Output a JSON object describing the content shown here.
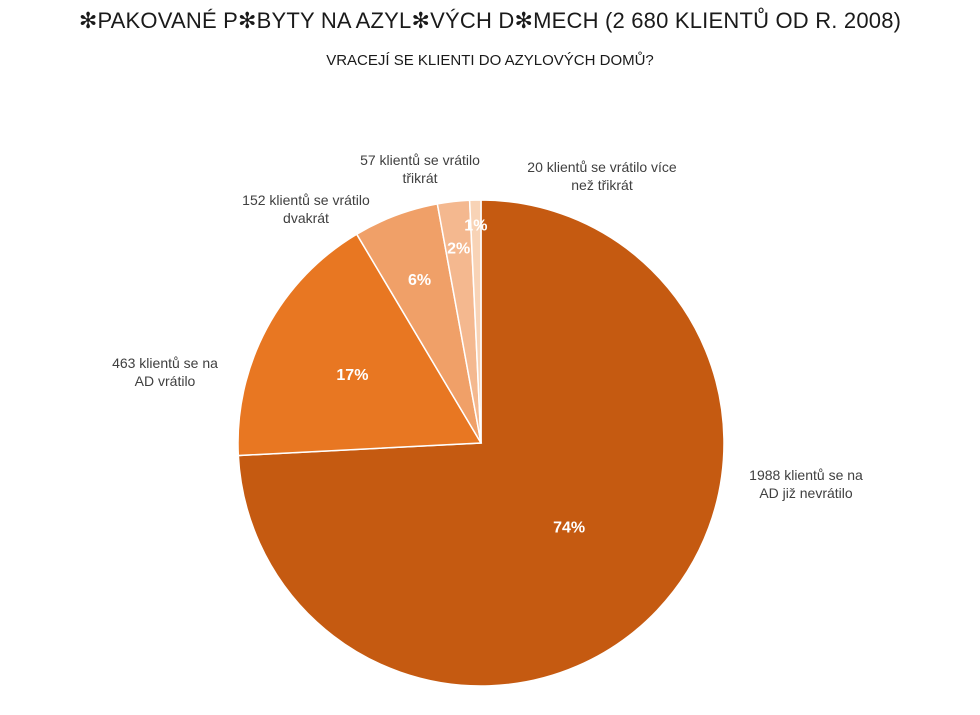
{
  "title": "✻PAKOVANÉ P✻BYTY NA AZYL✻VÝCH D✻MECH (2 680 KLIENTŮ OD R. 2008)",
  "subtitle": "VRACEJÍ SE KLIENTI DO AZYLOVÝCH DOMŮ?",
  "chart_data": {
    "type": "pie",
    "title": "✻PAKOVANÉ P✻BYTY NA AZYL✻VÝCH D✻MECH (2 680 KLIENTŮ OD R. 2008)",
    "subtitle": "VRACEJÍ SE KLIENTI DO AZYLOVÝCH DOMŮ?",
    "start": "top, clockwise",
    "slices": [
      {
        "label": [
          "1988 klientů se na",
          "AD již nevrátilo"
        ],
        "value": 1988,
        "percent_label": "74%",
        "color": "#C55A11"
      },
      {
        "label": [
          "463 klientů se na",
          "AD vrátilo"
        ],
        "value": 463,
        "percent_label": "17%",
        "color": "#E87722"
      },
      {
        "label": [
          "152 klientů se vrátilo",
          "dvakrát"
        ],
        "value": 152,
        "percent_label": "6%",
        "color": "#F0A068"
      },
      {
        "label": [
          "57 klientů se vrátilo",
          "třikrát"
        ],
        "value": 57,
        "percent_label": "2%",
        "color": "#F4B88F"
      },
      {
        "label": [
          "20 klientů se vrátilo více",
          "než třikrát"
        ],
        "value": 20,
        "percent_label": "1%",
        "color": "#F8D3B6"
      }
    ]
  }
}
